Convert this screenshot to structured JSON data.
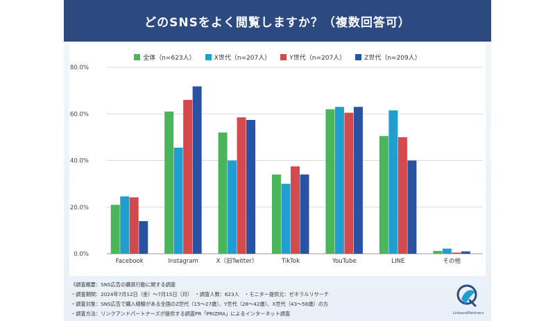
{
  "header": {
    "title": "どのSNSをよく閲覧しますか？（複数回答可）"
  },
  "colors": {
    "header_bg": "#2c4a7f",
    "series": [
      "#4bb55c",
      "#1f9ecf",
      "#d34a4e",
      "#2a52a3"
    ]
  },
  "chart_data": {
    "type": "bar",
    "categories": [
      "Facebook",
      "Instagram",
      "X（旧Twitter）",
      "TikTok",
      "YouTube",
      "LINE",
      "その他"
    ],
    "series": [
      {
        "name": "全体（n=623人）",
        "values": [
          21.0,
          61.0,
          52.0,
          34.0,
          62.0,
          50.5,
          1.2
        ]
      },
      {
        "name": "X世代（n=207人）",
        "values": [
          24.6,
          45.5,
          40.0,
          30.0,
          63.0,
          61.5,
          2.2
        ]
      },
      {
        "name": "Y世代（n=207人）",
        "values": [
          24.2,
          66.0,
          58.5,
          37.5,
          60.5,
          50.0,
          0.5
        ]
      },
      {
        "name": "Z世代（n=209人）",
        "values": [
          14.0,
          71.8,
          57.4,
          34.0,
          63.0,
          40.0,
          1.0
        ]
      }
    ],
    "ylim": [
      0,
      80
    ],
    "yticks": [
      "0.0%",
      "20.0%",
      "40.0%",
      "60.0%",
      "80.0%"
    ],
    "grid": true,
    "legend_placement": "top"
  },
  "notes": [
    "《調査概要：SNS広告の購買行動に関する調査",
    "・調査期間：2024年7月12日（金）〜7月15日（月）　・調査人数：623人　・モニター提供元：ゼネラルリサーチ",
    "・調査対象：SNS広告で購入経験がある全国のZ世代（15〜27歳）、Y世代（28〜42歳）、X世代（43〜58歳）の方",
    "・調査方法：リンクアンドパートナーズが提供する調査PR「PRIZMA」によるインターネット調査"
  ],
  "logo": {
    "text": "LinkandPartners",
    "icon": "link-and-partners-logo"
  }
}
